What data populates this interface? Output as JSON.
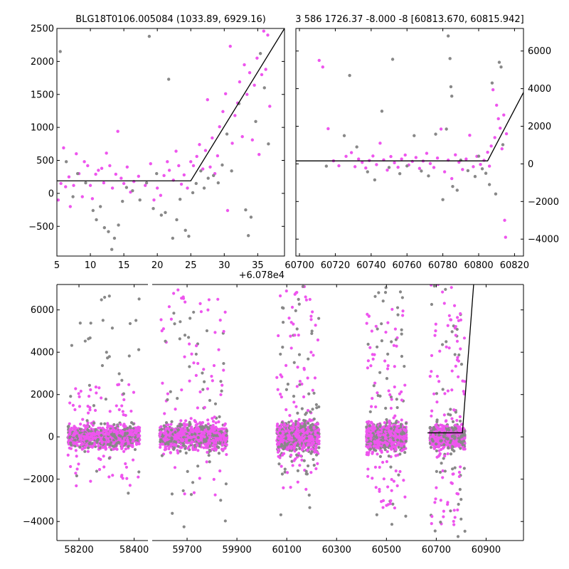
{
  "titles": {
    "top_left": "BLG18T0106.005084 (1033.89, 6929.16)",
    "top_right": "3 586 1726.37 -8.000 -8 [60813.670, 60815.942]"
  },
  "colors": {
    "primary_points": "#ee55ee",
    "secondary_points": "#888888",
    "model_line": "#000000",
    "axes": "#000000",
    "background": "#ffffff"
  },
  "chart_data": [
    {
      "id": "top_left",
      "type": "scatter",
      "title": "BLG18T0106.005084 (1033.89, 6929.16)",
      "xlim": [
        5,
        39
      ],
      "ylim": [
        -950,
        2500
      ],
      "x_offset_label": "+6.078e4",
      "x_ticks": [
        5,
        10,
        15,
        20,
        25,
        30,
        35
      ],
      "y_ticks": [
        -500,
        0,
        500,
        1000,
        1500,
        2000,
        2500
      ],
      "y_tick_labels": [
        "−500",
        "0",
        "500",
        "1000",
        "1500",
        "2000",
        "2500"
      ],
      "model_line": {
        "x": [
          5,
          25,
          39
        ],
        "y": [
          190,
          190,
          2500
        ]
      },
      "series": [
        {
          "color": "magenta",
          "points": [
            [
              5.2,
              -100
            ],
            [
              5.6,
              150
            ],
            [
              6,
              690
            ],
            [
              6.3,
              100
            ],
            [
              6.8,
              250
            ],
            [
              7,
              -200
            ],
            [
              7.5,
              120
            ],
            [
              7.9,
              600
            ],
            [
              8.3,
              300
            ],
            [
              8.8,
              -50
            ],
            [
              9.1,
              480
            ],
            [
              9.6,
              420
            ],
            [
              10,
              120
            ],
            [
              10.3,
              -80
            ],
            [
              10.8,
              290
            ],
            [
              11.2,
              350
            ],
            [
              11.7,
              380
            ],
            [
              12,
              160
            ],
            [
              12.4,
              610
            ],
            [
              12.9,
              420
            ],
            [
              13.3,
              80
            ],
            [
              13.8,
              290
            ],
            [
              14.1,
              940
            ],
            [
              14.6,
              230
            ],
            [
              15,
              150
            ],
            [
              15.5,
              400
            ],
            [
              16,
              20
            ],
            [
              16.5,
              180
            ],
            [
              17.2,
              260
            ],
            [
              18.2,
              120
            ],
            [
              19,
              450
            ],
            [
              19.5,
              -100
            ],
            [
              20,
              80
            ],
            [
              20.5,
              -30
            ],
            [
              21,
              270
            ],
            [
              21.5,
              480
            ],
            [
              21.8,
              350
            ],
            [
              22.4,
              200
            ],
            [
              22.8,
              640
            ],
            [
              23.2,
              420
            ],
            [
              23.6,
              140
            ],
            [
              24,
              280
            ],
            [
              24.5,
              80
            ],
            [
              25,
              480
            ],
            [
              25.4,
              420
            ],
            [
              25.9,
              560
            ],
            [
              26.3,
              740
            ],
            [
              26.8,
              370
            ],
            [
              27.2,
              650
            ],
            [
              27.5,
              1420
            ],
            [
              27.9,
              400
            ],
            [
              28.2,
              840
            ],
            [
              28.6,
              300
            ],
            [
              29,
              570
            ],
            [
              29.3,
              1010
            ],
            [
              29.8,
              1240
            ],
            [
              30.2,
              1510
            ],
            [
              30.5,
              -260
            ],
            [
              30.9,
              2230
            ],
            [
              31.2,
              760
            ],
            [
              31.6,
              1180
            ],
            [
              32,
              1370
            ],
            [
              32.3,
              1690
            ],
            [
              32.7,
              860
            ],
            [
              33,
              1950
            ],
            [
              33.4,
              1500
            ],
            [
              33.8,
              1830
            ],
            [
              34.2,
              810
            ],
            [
              34.5,
              1640
            ],
            [
              34.9,
              2050
            ],
            [
              35.2,
              590
            ],
            [
              35.6,
              1800
            ],
            [
              35.9,
              2460
            ],
            [
              36.2,
              1880
            ],
            [
              36.5,
              2400
            ],
            [
              36.8,
              1320
            ],
            [
              37.1,
              2540
            ]
          ]
        },
        {
          "color": "gray",
          "points": [
            [
              5.5,
              2150
            ],
            [
              6.4,
              480
            ],
            [
              7.4,
              -50
            ],
            [
              8.1,
              300
            ],
            [
              9.3,
              160
            ],
            [
              10.4,
              -260
            ],
            [
              10.9,
              -400
            ],
            [
              11.5,
              -200
            ],
            [
              12.1,
              -520
            ],
            [
              12.7,
              -580
            ],
            [
              13.2,
              -850
            ],
            [
              13.6,
              -680
            ],
            [
              14.2,
              -480
            ],
            [
              14.8,
              -120
            ],
            [
              15.4,
              90
            ],
            [
              16.3,
              40
            ],
            [
              17.4,
              -100
            ],
            [
              18.4,
              160
            ],
            [
              18.8,
              2380
            ],
            [
              19.4,
              -230
            ],
            [
              19.9,
              300
            ],
            [
              20.6,
              -330
            ],
            [
              21.2,
              -290
            ],
            [
              21.7,
              1730
            ],
            [
              22.3,
              -680
            ],
            [
              22.9,
              -400
            ],
            [
              23.4,
              -90
            ],
            [
              24.2,
              -560
            ],
            [
              24.7,
              -650
            ],
            [
              25.3,
              10
            ],
            [
              25.8,
              150
            ],
            [
              26.5,
              340
            ],
            [
              27,
              80
            ],
            [
              27.6,
              230
            ],
            [
              28.4,
              270
            ],
            [
              29.1,
              160
            ],
            [
              29.7,
              430
            ],
            [
              30.4,
              900
            ],
            [
              31.1,
              340
            ],
            [
              32.2,
              1360
            ],
            [
              33.2,
              -250
            ],
            [
              33.6,
              -640
            ],
            [
              34,
              -360
            ],
            [
              34.7,
              1090
            ],
            [
              35.4,
              2120
            ],
            [
              36,
              1600
            ],
            [
              36.6,
              750
            ]
          ]
        }
      ]
    },
    {
      "id": "top_right",
      "type": "scatter",
      "title": "3 586 1726.37 -8.000 -8 [60813.670, 60815.942]",
      "xlim": [
        60698,
        60825
      ],
      "ylim": [
        -4900,
        7200
      ],
      "x_ticks": [
        60700,
        60720,
        60740,
        60760,
        60780,
        60800,
        60820
      ],
      "y_ticks": [
        -4000,
        -2000,
        0,
        2000,
        4000,
        6000
      ],
      "y_tick_labels": [
        "−4000",
        "−2000",
        "0",
        "2000",
        "4000",
        "6000"
      ],
      "y_axis_side": "right",
      "model_line": {
        "x": [
          60698,
          60805,
          60825
        ],
        "y": [
          160,
          160,
          3800
        ]
      },
      "series": [
        {
          "color": "magenta",
          "points": [
            [
              60711,
              5500
            ],
            [
              60713,
              5150
            ],
            [
              60716,
              1870
            ],
            [
              60719,
              160
            ],
            [
              60722,
              -100
            ],
            [
              60726,
              400
            ],
            [
              60729,
              600
            ],
            [
              60731,
              -150
            ],
            [
              60733,
              260
            ],
            [
              60735,
              80
            ],
            [
              60737,
              -220
            ],
            [
              60739,
              180
            ],
            [
              60741,
              420
            ],
            [
              60743,
              -40
            ],
            [
              60745,
              1100
            ],
            [
              60747,
              210
            ],
            [
              60749,
              -330
            ],
            [
              60751,
              390
            ],
            [
              60753,
              60
            ],
            [
              60755,
              -180
            ],
            [
              60757,
              260
            ],
            [
              60759,
              470
            ],
            [
              60761,
              -60
            ],
            [
              60763,
              130
            ],
            [
              60765,
              340
            ],
            [
              60767,
              -240
            ],
            [
              60769,
              150
            ],
            [
              60771,
              560
            ],
            [
              60773,
              20
            ],
            [
              60775,
              -190
            ],
            [
              60777,
              310
            ],
            [
              60779,
              1850
            ],
            [
              60781,
              -420
            ],
            [
              60783,
              200
            ],
            [
              60785,
              -780
            ],
            [
              60787,
              480
            ],
            [
              60789,
              90
            ],
            [
              60791,
              -300
            ],
            [
              60793,
              260
            ],
            [
              60795,
              1520
            ],
            [
              60797,
              -150
            ],
            [
              60799,
              400
            ],
            [
              60801,
              -30
            ],
            [
              60803,
              190
            ],
            [
              60805,
              620
            ],
            [
              60806,
              -120
            ],
            [
              60807,
              950
            ],
            [
              60808,
              3940
            ],
            [
              60809,
              1400
            ],
            [
              60810,
              3120
            ],
            [
              60811,
              2400
            ],
            [
              60812,
              1900
            ],
            [
              60813,
              800
            ],
            [
              60814,
              2600
            ],
            [
              60814.5,
              -3000
            ],
            [
              60815,
              -3900
            ],
            [
              60815.5,
              1600
            ]
          ]
        },
        {
          "color": "gray",
          "points": [
            [
              60715,
              -120
            ],
            [
              60725,
              1500
            ],
            [
              60728,
              4700
            ],
            [
              60732,
              900
            ],
            [
              60738,
              -420
            ],
            [
              60742,
              -850
            ],
            [
              60746,
              2800
            ],
            [
              60750,
              -190
            ],
            [
              60752,
              5560
            ],
            [
              60756,
              -520
            ],
            [
              60760,
              -110
            ],
            [
              60764,
              1500
            ],
            [
              60768,
              -380
            ],
            [
              60772,
              -640
            ],
            [
              60776,
              1580
            ],
            [
              60780,
              -1900
            ],
            [
              60782,
              1850
            ],
            [
              60783,
              6800
            ],
            [
              60784,
              5600
            ],
            [
              60784.5,
              4100
            ],
            [
              60785,
              3600
            ],
            [
              60785.5,
              -1200
            ],
            [
              60788,
              -1400
            ],
            [
              60790,
              200
            ],
            [
              60794,
              -360
            ],
            [
              60798,
              -670
            ],
            [
              60800,
              410
            ],
            [
              60802,
              -260
            ],
            [
              60804,
              -500
            ],
            [
              60806,
              -1100
            ],
            [
              60807.5,
              4300
            ],
            [
              60809.5,
              -1600
            ],
            [
              60811.5,
              5400
            ],
            [
              60812.5,
              5150
            ],
            [
              60813.5,
              1020
            ]
          ]
        }
      ]
    },
    {
      "id": "bottom",
      "type": "scatter",
      "title": "",
      "broken_x_axis": true,
      "segments": [
        {
          "xlim": [
            58120,
            58450
          ],
          "x_ticks": [
            58200,
            58400
          ]
        },
        {
          "xlim": [
            59560,
            61050
          ],
          "x_ticks": [
            59700,
            59900,
            60100,
            60300,
            60500,
            60700,
            60900
          ]
        }
      ],
      "ylim": [
        -4900,
        7200
      ],
      "y_ticks": [
        -4000,
        -2000,
        0,
        2000,
        4000,
        6000
      ],
      "y_tick_labels": [
        "−4000",
        "−2000",
        "0",
        "2000",
        "4000",
        "6000"
      ],
      "model_line": {
        "x": [
          60665,
          60805,
          60850
        ],
        "y": [
          190,
          190,
          7200
        ]
      },
      "seasons": [
        {
          "x_range": [
            58160,
            58420
          ],
          "core_halfwidth": 420,
          "gray_spread": [
            -2800,
            6900
          ],
          "pink_spread": [
            -2400,
            2500
          ]
        },
        {
          "x_range": [
            59590,
            59860
          ],
          "core_halfwidth": 480,
          "gray_spread": [
            -4600,
            6200
          ],
          "pink_spread": [
            -2800,
            7000
          ]
        },
        {
          "x_range": [
            60060,
            60230
          ],
          "core_halfwidth": 520,
          "gray_spread": [
            -3800,
            7200
          ],
          "pink_spread": [
            -2700,
            7100
          ]
        },
        {
          "x_range": [
            60420,
            60580
          ],
          "core_halfwidth": 500,
          "gray_spread": [
            -4300,
            7200
          ],
          "pink_spread": [
            -3400,
            6200
          ]
        },
        {
          "x_range": [
            60675,
            60815
          ],
          "core_halfwidth": 380,
          "gray_spread": [
            -4800,
            7200
          ],
          "pink_spread": [
            -4200,
            7200
          ]
        }
      ]
    }
  ]
}
